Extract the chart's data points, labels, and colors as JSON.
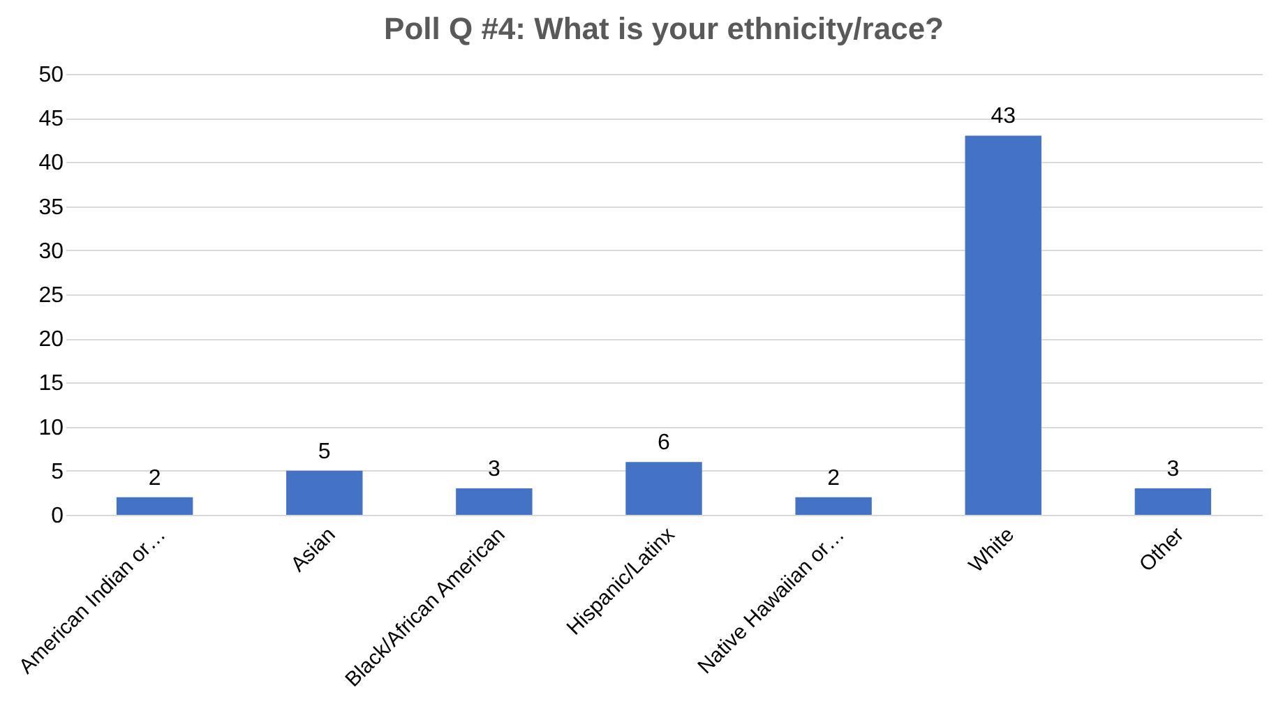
{
  "chart_data": {
    "type": "bar",
    "title": "Poll Q #4: What is your ethnicity/race?",
    "categories": [
      "American Indian or…",
      "Asian",
      "Black/African American",
      "Hispanic/Latinx",
      "Native Hawaiian or…",
      "White",
      "Other"
    ],
    "values": [
      2,
      5,
      3,
      6,
      2,
      43,
      3
    ],
    "color": "#4472c4",
    "ylim": [
      0,
      50
    ],
    "yticks": [
      0,
      5,
      10,
      15,
      20,
      25,
      30,
      35,
      40,
      45,
      50
    ],
    "grid": "y",
    "data_labels": true
  }
}
